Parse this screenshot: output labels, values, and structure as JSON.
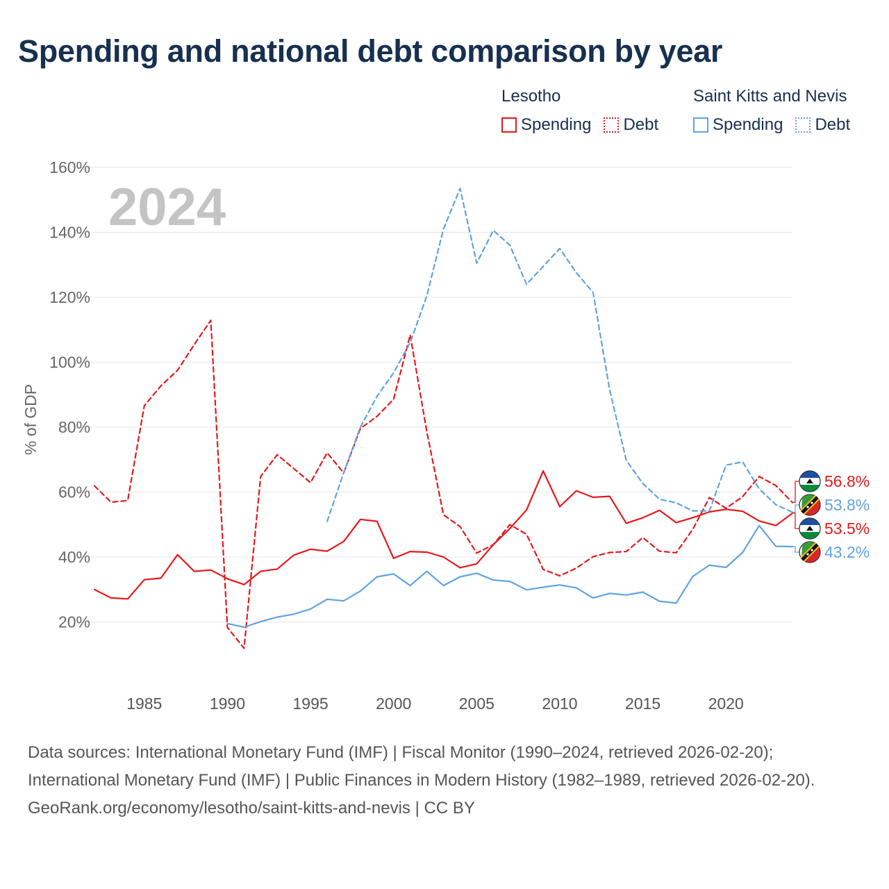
{
  "title": "Spending and national debt comparison by year",
  "legend": {
    "groups": [
      {
        "name": "Lesotho",
        "items": [
          {
            "label": "Spending",
            "style": "solid"
          },
          {
            "label": "Debt",
            "style": "dotted"
          }
        ],
        "color": "#e8171b"
      },
      {
        "name": "Saint Kitts and Nevis",
        "items": [
          {
            "label": "Spending",
            "style": "solid"
          },
          {
            "label": "Debt",
            "style": "dotted"
          }
        ],
        "color": "#5fa3e0"
      }
    ]
  },
  "chart_data": {
    "type": "line",
    "year_label": "2024",
    "ylabel": "% of GDP",
    "ylim": [
      0,
      160
    ],
    "xlim": [
      1982,
      2024
    ],
    "y_ticks": [
      20,
      40,
      60,
      80,
      100,
      120,
      140,
      160
    ],
    "y_tick_labels": [
      "20%",
      "40%",
      "60%",
      "80%",
      "100%",
      "120%",
      "140%",
      "160%"
    ],
    "x_ticks": [
      1985,
      1990,
      1995,
      2000,
      2005,
      2010,
      2015,
      2020
    ],
    "x_tick_labels": [
      "1985",
      "1990",
      "1995",
      "2000",
      "2005",
      "2010",
      "2015",
      "2020"
    ],
    "series": [
      {
        "name": "Lesotho Debt",
        "country": "Lesotho",
        "kind": "debt",
        "color": "#e8171b",
        "dash": "dashed",
        "x": [
          1982,
          1983,
          1984,
          1985,
          1986,
          1987,
          1988,
          1989,
          1990,
          1991,
          1992,
          1993,
          1994,
          1995,
          1996,
          1997,
          1998,
          1999,
          2000,
          2001,
          2002,
          2003,
          2004,
          2005,
          2006,
          2007,
          2008,
          2009,
          2010,
          2011,
          2012,
          2013,
          2014,
          2015,
          2016,
          2017,
          2018,
          2019,
          2020,
          2021,
          2022,
          2023,
          2024
        ],
        "values": [
          61.9,
          56.9,
          57.4,
          86.6,
          92.7,
          97.5,
          105.4,
          112.9,
          18.3,
          11.9,
          64.8,
          71.5,
          67.2,
          62.9,
          72.1,
          65.9,
          79.6,
          83.3,
          88.6,
          108.4,
          78.5,
          53.0,
          49.4,
          41.2,
          43.8,
          50.0,
          47.0,
          36.2,
          34.2,
          36.6,
          40.1,
          41.4,
          41.7,
          46.0,
          41.8,
          41.3,
          48.5,
          58.3,
          55.0,
          58.6,
          64.8,
          62.0,
          56.8
        ]
      },
      {
        "name": "Lesotho Spending",
        "country": "Lesotho",
        "kind": "spending",
        "color": "#e8171b",
        "dash": "solid",
        "x": [
          1982,
          1983,
          1984,
          1985,
          1986,
          1987,
          1988,
          1989,
          1990,
          1991,
          1992,
          1993,
          1994,
          1995,
          1996,
          1997,
          1998,
          1999,
          2000,
          2001,
          2002,
          2003,
          2004,
          2005,
          2006,
          2007,
          2008,
          2009,
          2010,
          2011,
          2012,
          2013,
          2014,
          2015,
          2016,
          2017,
          2018,
          2019,
          2020,
          2021,
          2022,
          2023,
          2024
        ],
        "values": [
          30.0,
          27.4,
          27.1,
          33.0,
          33.5,
          40.7,
          35.6,
          36.0,
          33.3,
          31.5,
          35.6,
          36.3,
          40.6,
          42.4,
          41.8,
          44.8,
          51.6,
          51.0,
          39.6,
          41.7,
          41.5,
          40.0,
          36.7,
          37.9,
          43.8,
          48.8,
          54.5,
          66.5,
          55.5,
          60.4,
          58.4,
          58.7,
          50.4,
          52.1,
          54.4,
          50.6,
          52.1,
          53.9,
          54.7,
          54.1,
          51.1,
          49.7,
          53.5
        ]
      },
      {
        "name": "Saint Kitts and Nevis Debt",
        "country": "Saint Kitts and Nevis",
        "kind": "debt",
        "color": "#5fa3e0",
        "dash": "dashed",
        "x": [
          1996,
          1997,
          1998,
          1999,
          2000,
          2001,
          2002,
          2003,
          2004,
          2005,
          2006,
          2007,
          2008,
          2009,
          2010,
          2011,
          2012,
          2013,
          2014,
          2015,
          2016,
          2017,
          2018,
          2019,
          2020,
          2021,
          2022,
          2023,
          2024
        ],
        "values": [
          51.0,
          66.0,
          80.0,
          89.5,
          96.7,
          106.0,
          120.5,
          141.0,
          153.5,
          130.5,
          140.6,
          136.0,
          124.0,
          129.5,
          135.0,
          127.5,
          121.5,
          91.5,
          69.8,
          62.6,
          57.8,
          56.7,
          54.2,
          54.2,
          68.3,
          69.3,
          61.0,
          56.1,
          53.8
        ]
      },
      {
        "name": "Saint Kitts and Nevis Spending",
        "country": "Saint Kitts and Nevis",
        "kind": "spending",
        "color": "#5fa3e0",
        "dash": "solid",
        "x": [
          1990,
          1991,
          1992,
          1993,
          1994,
          1995,
          1996,
          1997,
          1998,
          1999,
          2000,
          2001,
          2002,
          2003,
          2004,
          2005,
          2006,
          2007,
          2008,
          2009,
          2010,
          2011,
          2012,
          2013,
          2014,
          2015,
          2016,
          2017,
          2018,
          2019,
          2020,
          2021,
          2022,
          2023,
          2024
        ],
        "values": [
          19.5,
          18.4,
          20.1,
          21.5,
          22.4,
          24.0,
          27.0,
          26.5,
          29.5,
          33.9,
          34.8,
          31.2,
          35.6,
          31.2,
          33.9,
          35.0,
          32.9,
          32.5,
          29.9,
          30.7,
          31.4,
          30.5,
          27.4,
          28.8,
          28.3,
          29.2,
          26.4,
          25.8,
          34.0,
          37.5,
          36.8,
          41.4,
          49.7,
          43.3,
          43.2
        ]
      }
    ],
    "end_labels": [
      {
        "text": "56.8%",
        "value": 56.8,
        "color": "#e8171b",
        "flag": "lesotho-flag-icon"
      },
      {
        "text": "53.8%",
        "value": 53.8,
        "color": "#5fa3e0",
        "flag": "saint-kitts-and-nevis-flag-icon"
      },
      {
        "text": "53.5%",
        "value": 53.5,
        "color": "#e8171b",
        "flag": "lesotho-flag-icon"
      },
      {
        "text": "43.2%",
        "value": 43.2,
        "color": "#5fa3e0",
        "flag": "saint-kitts-and-nevis-flag-icon"
      }
    ]
  },
  "footer": {
    "sources": "Data sources: International Monetary Fund (IMF) | Fiscal Monitor (1990–2024, retrieved 2026-02-20); International Monetary Fund (IMF) | Public Finances in Modern History (1982–1989, retrieved 2026-02-20).",
    "credit": "GeoRank.org/economy/lesotho/saint-kitts-and-nevis | CC BY"
  }
}
